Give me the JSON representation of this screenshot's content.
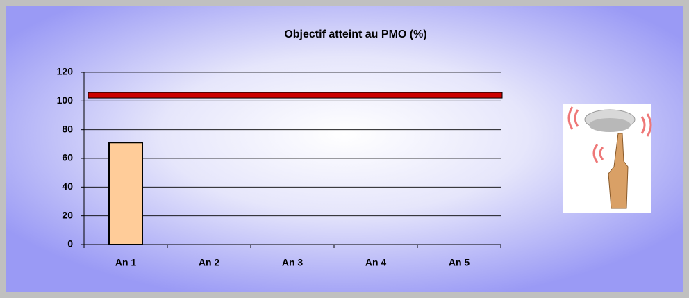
{
  "chart_data": {
    "type": "bar",
    "title": "Objectif atteint au PMO  (%)",
    "categories": [
      "An 1",
      "An 2",
      "An 3",
      "An 4",
      "An 5"
    ],
    "values": [
      71,
      null,
      null,
      null,
      null
    ],
    "color": "#ffcc99",
    "target_line": {
      "value": 104,
      "color": "#cc0000"
    },
    "ylim": [
      0,
      120
    ],
    "yticks": [
      0,
      20,
      40,
      60,
      80,
      100,
      120
    ],
    "grid": true
  }
}
